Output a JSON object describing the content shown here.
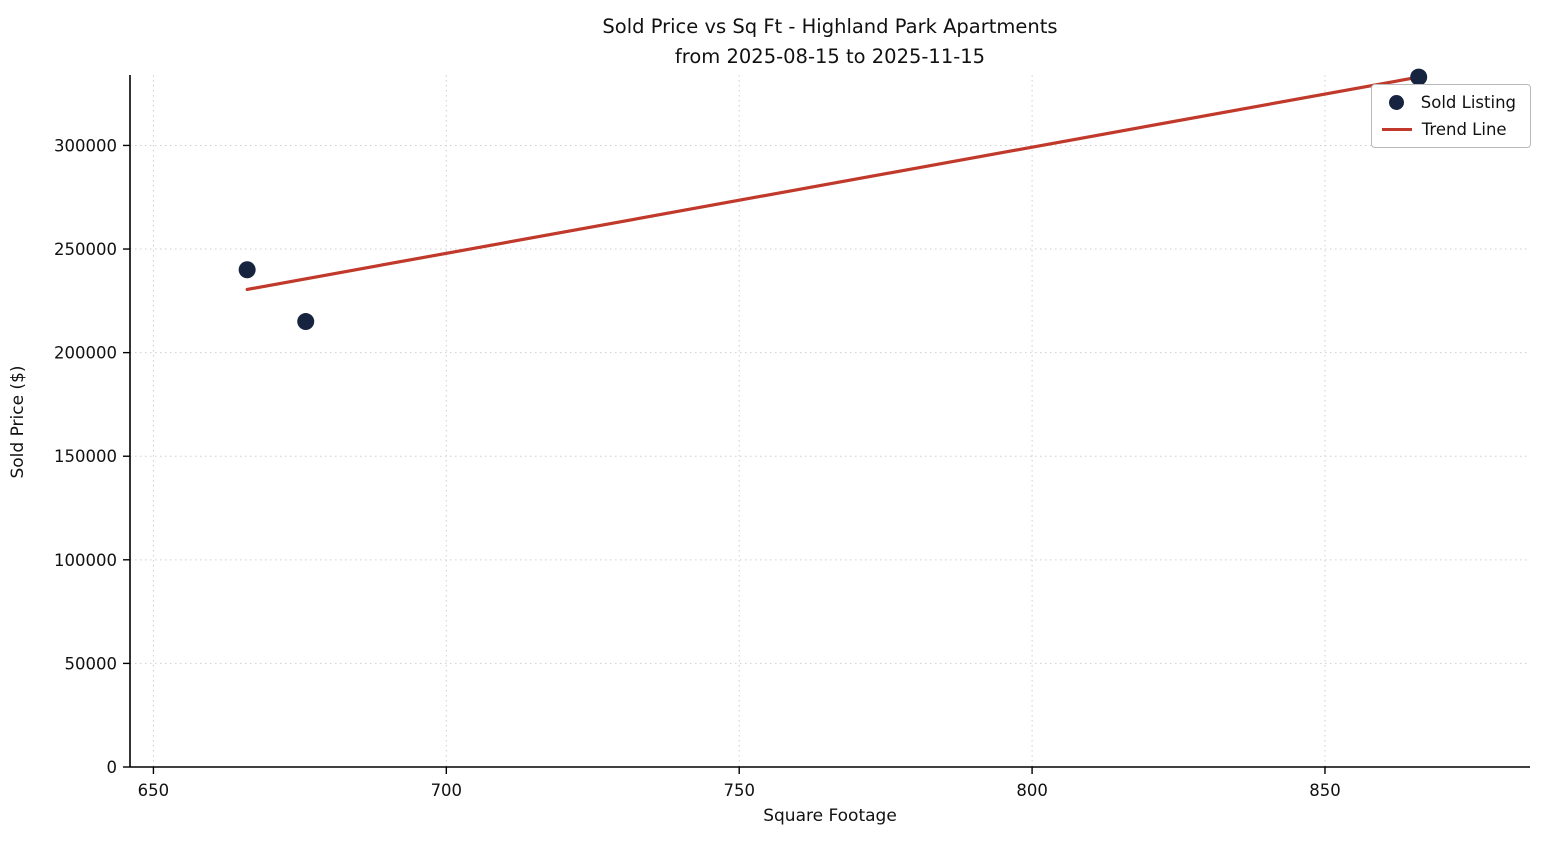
{
  "title": {
    "line1": "Sold Price vs Sq Ft - Highland Park Apartments",
    "line2": "from 2025-08-15 to 2025-11-15"
  },
  "chart_data": {
    "type": "scatter",
    "title": "Sold Price vs Sq Ft - Highland Park Apartments\nfrom 2025-08-15 to 2025-11-15",
    "xlabel": "Square Footage",
    "ylabel": "Sold Price ($)",
    "xlim": [
      646,
      885
    ],
    "ylim": [
      0,
      334000
    ],
    "x_ticks": [
      650,
      700,
      750,
      800,
      850
    ],
    "y_ticks": [
      0,
      50000,
      100000,
      150000,
      200000,
      250000,
      300000
    ],
    "grid": true,
    "grid_style": "dotted",
    "legend_position": "upper right",
    "series": [
      {
        "name": "Sold Listing",
        "type": "scatter",
        "color": "#16243f",
        "points": [
          {
            "x": 666,
            "y": 240000
          },
          {
            "x": 676,
            "y": 215000
          },
          {
            "x": 866,
            "y": 333000
          }
        ]
      },
      {
        "name": "Trend Line",
        "type": "line",
        "color": "#c0392b",
        "points": [
          {
            "x": 666,
            "y": 230500
          },
          {
            "x": 866,
            "y": 333000
          }
        ]
      }
    ],
    "colors": {
      "point": "#16243f",
      "trend": "#c0392b",
      "grid": "#cfcfcf",
      "axis": "#000000",
      "background": "#ffffff"
    }
  },
  "legend": {
    "items": [
      {
        "label": "Sold Listing"
      },
      {
        "label": "Trend Line"
      }
    ]
  }
}
